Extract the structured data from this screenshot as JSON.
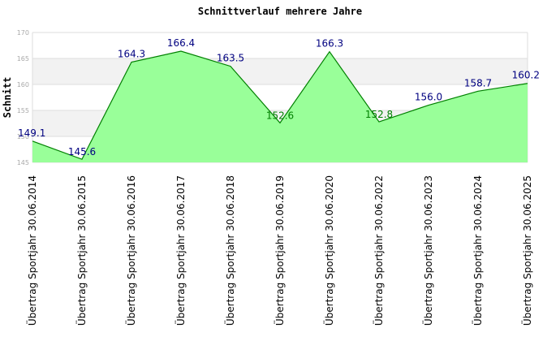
{
  "chart_data": {
    "type": "area",
    "title": "Schnittverlauf mehrere Jahre",
    "xlabel": "",
    "ylabel": "Schnitt",
    "ylim": [
      145,
      170
    ],
    "yticks": [
      "145",
      "150",
      "155",
      "160",
      "165",
      "170"
    ],
    "grid": true,
    "categories": [
      "Übertrag Sportjahr 30.06.2014",
      "Übertrag Sportjahr 30.06.2015",
      "Übertrag Sportjahr 30.06.2016",
      "Übertrag Sportjahr 30.06.2017",
      "Übertrag Sportjahr 30.06.2018",
      "Übertrag Sportjahr 30.06.2019",
      "Übertrag Sportjahr 30.06.2020",
      "Übertrag Sportjahr 30.06.2022",
      "Übertrag Sportjahr 30.06.2023",
      "Übertrag Sportjahr 30.06.2024",
      "Übertrag Sportjahr 30.06.2025"
    ],
    "values": [
      149.1,
      145.6,
      164.3,
      166.4,
      163.5,
      152.6,
      166.3,
      152.8,
      156.0,
      158.7,
      160.2
    ],
    "data_labels": [
      "149.1",
      "145.6",
      "164.3",
      "166.4",
      "163.5",
      "152.6",
      "166.3",
      "152.8",
      "156.0",
      "158.7",
      "160.2"
    ],
    "colors": {
      "fill": "#99ff99",
      "line": "#008000",
      "label": "#000080",
      "label_low": "#008000",
      "band": "#f2f2f2",
      "grid": "#dddddd"
    }
  }
}
